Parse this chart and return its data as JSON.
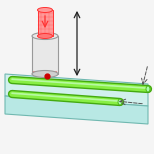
{
  "bg_color": "#f5f5f5",
  "glass_top_color": "#d0f0ed",
  "glass_front_color": "#b8e8e4",
  "glass_right_color": "#a8d8d4",
  "glass_edge_color": "#70b8b0",
  "waveguide_color": "#88ee44",
  "waveguide_edge_color": "#44aa10",
  "lens_body_color": "#e8e8e8",
  "lens_body_edge": "#999999",
  "lens_bot_color": "#d0d0d0",
  "beam_fill": "#ff9999",
  "beam_edge": "#ff3333",
  "beam_inner": "#ffbbbb",
  "cone_fill": "#ff8888",
  "cone_edge": "#ff2222",
  "arrow_color": "#222222",
  "dot_color": "#cc0000",
  "dash_color": "#555555",
  "wg_cap_color": "#aaffaa"
}
